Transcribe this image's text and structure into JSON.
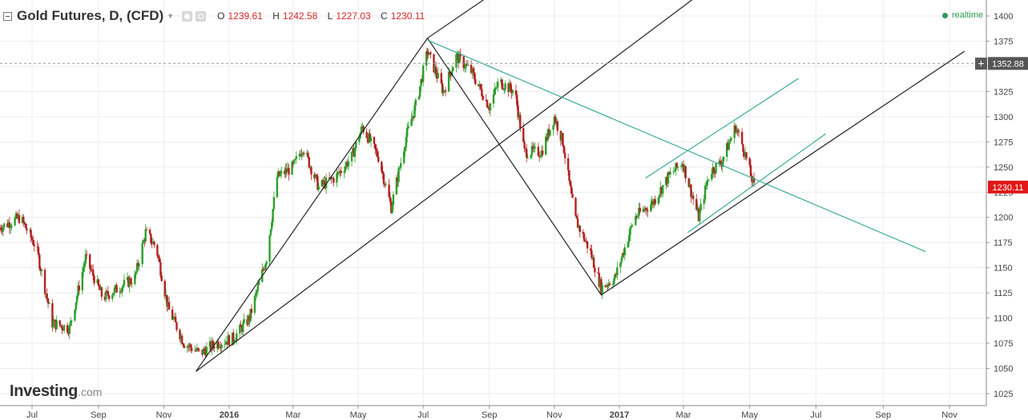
{
  "header": {
    "title": "Gold Futures, D, (CFD)",
    "ohlc": [
      {
        "key": "O",
        "value": "1239.61"
      },
      {
        "key": "H",
        "value": "1242.58"
      },
      {
        "key": "L",
        "value": "1227.03"
      },
      {
        "key": "C",
        "value": "1230.11"
      }
    ],
    "realtime_label": "realtime"
  },
  "logo": {
    "main": "Investing",
    "suffix": ".com"
  },
  "crosshair": {
    "label": "1352.88",
    "plus_label": "+"
  },
  "colors": {
    "up": "#2ca02c",
    "down": "#b22222",
    "trendline": "#222222",
    "channel": "#3aaa96",
    "price_tag": "#e01818",
    "crosshair_tag": "#555555",
    "realtime": "#2e9a58"
  },
  "chart_data": {
    "type": "candlestick",
    "title": "Gold Futures, D, (CFD)",
    "x_labels": [
      "Jul",
      "Sep",
      "Nov",
      "2016",
      "Mar",
      "May",
      "Jul",
      "Sep",
      "Nov",
      "2017",
      "Mar",
      "May",
      "Jul",
      "Sep",
      "Nov"
    ],
    "y_ticks": [
      1025,
      1050,
      1075,
      1100,
      1125,
      1150,
      1175,
      1200,
      1225,
      1250,
      1275,
      1300,
      1325,
      1350,
      1375,
      1400
    ],
    "ylim": [
      1012,
      1420
    ],
    "last_price": 1230.11,
    "price_path": [
      [
        "2015-06-01",
        1190
      ],
      [
        "2015-06-20",
        1200
      ],
      [
        "2015-07-05",
        1170
      ],
      [
        "2015-07-20",
        1095
      ],
      [
        "2015-08-05",
        1090
      ],
      [
        "2015-08-20",
        1160
      ],
      [
        "2015-09-05",
        1120
      ],
      [
        "2015-09-20",
        1130
      ],
      [
        "2015-10-05",
        1140
      ],
      [
        "2015-10-15",
        1185
      ],
      [
        "2015-10-25",
        1170
      ],
      [
        "2015-11-05",
        1110
      ],
      [
        "2015-11-20",
        1075
      ],
      [
        "2015-12-05",
        1065
      ],
      [
        "2015-12-20",
        1075
      ],
      [
        "2016-01-05",
        1080
      ],
      [
        "2016-01-20",
        1100
      ],
      [
        "2016-02-05",
        1160
      ],
      [
        "2016-02-15",
        1240
      ],
      [
        "2016-03-01",
        1250
      ],
      [
        "2016-03-10",
        1270
      ],
      [
        "2016-03-25",
        1230
      ],
      [
        "2016-04-10",
        1240
      ],
      [
        "2016-04-25",
        1260
      ],
      [
        "2016-05-05",
        1290
      ],
      [
        "2016-05-20",
        1260
      ],
      [
        "2016-06-01",
        1210
      ],
      [
        "2016-06-15",
        1280
      ],
      [
        "2016-06-25",
        1315
      ],
      [
        "2016-07-05",
        1365
      ],
      [
        "2016-07-20",
        1325
      ],
      [
        "2016-08-01",
        1360
      ],
      [
        "2016-08-15",
        1345
      ],
      [
        "2016-09-01",
        1310
      ],
      [
        "2016-09-10",
        1335
      ],
      [
        "2016-09-25",
        1325
      ],
      [
        "2016-10-04",
        1265
      ],
      [
        "2016-10-20",
        1265
      ],
      [
        "2016-11-01",
        1300
      ],
      [
        "2016-11-09",
        1275
      ],
      [
        "2016-11-20",
        1200
      ],
      [
        "2016-12-05",
        1165
      ],
      [
        "2016-12-15",
        1130
      ],
      [
        "2016-12-28",
        1140
      ],
      [
        "2017-01-15",
        1200
      ],
      [
        "2017-02-01",
        1215
      ],
      [
        "2017-02-15",
        1240
      ],
      [
        "2017-02-28",
        1255
      ],
      [
        "2017-03-15",
        1200
      ],
      [
        "2017-03-25",
        1245
      ],
      [
        "2017-04-05",
        1255
      ],
      [
        "2017-04-18",
        1290
      ],
      [
        "2017-04-25",
        1270
      ],
      [
        "2017-05-05",
        1230
      ]
    ],
    "trendlines": [
      {
        "style": "black",
        "points": [
          [
            "2015-12-01",
            1047
          ],
          [
            "2016-07-05",
            1378
          ]
        ]
      },
      {
        "style": "black",
        "points": [
          [
            "2016-07-05",
            1378
          ],
          [
            "2016-12-15",
            1123
          ]
        ]
      },
      {
        "style": "black",
        "points": [
          [
            "2016-12-15",
            1123
          ],
          [
            "2017-11-15",
            1365
          ]
        ]
      },
      {
        "style": "black",
        "points": [
          [
            "2015-12-01",
            1047
          ],
          [
            "2017-03-20",
            1425
          ]
        ]
      },
      {
        "style": "black",
        "points": [
          [
            "2016-07-05",
            1378
          ],
          [
            "2016-09-01",
            1420
          ]
        ]
      },
      {
        "style": "teal",
        "points": [
          [
            "2016-07-05",
            1376
          ],
          [
            "2017-10-10",
            1166
          ]
        ]
      },
      {
        "style": "teal",
        "points": [
          [
            "2017-01-25",
            1239
          ],
          [
            "2017-06-15",
            1338
          ]
        ]
      },
      {
        "style": "teal",
        "points": [
          [
            "2017-03-05",
            1185
          ],
          [
            "2017-07-10",
            1283
          ]
        ]
      }
    ]
  }
}
